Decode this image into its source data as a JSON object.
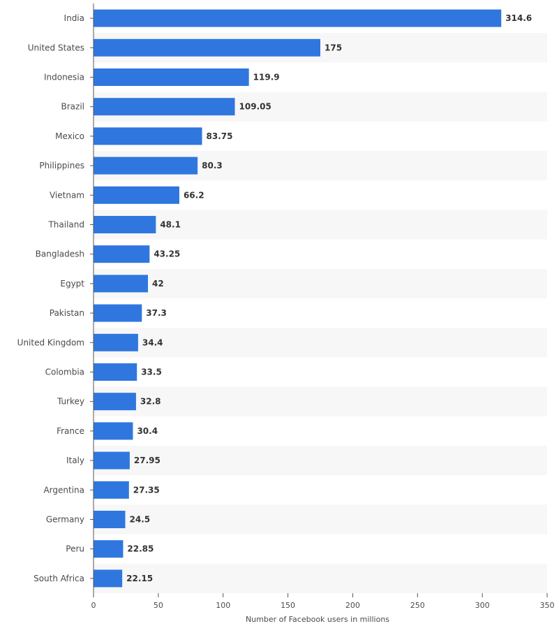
{
  "chart_data": {
    "type": "bar",
    "orientation": "horizontal",
    "categories": [
      "India",
      "United States",
      "Indonesia",
      "Brazil",
      "Mexico",
      "Philippines",
      "Vietnam",
      "Thailand",
      "Bangladesh",
      "Egypt",
      "Pakistan",
      "United Kingdom",
      "Colombia",
      "Turkey",
      "France",
      "Italy",
      "Argentina",
      "Germany",
      "Peru",
      "South Africa"
    ],
    "values": [
      314.6,
      175,
      119.9,
      109.05,
      83.75,
      80.3,
      66.2,
      48.1,
      43.25,
      42,
      37.3,
      34.4,
      33.5,
      32.8,
      30.4,
      27.95,
      27.35,
      24.5,
      22.85,
      22.15
    ],
    "value_labels": [
      "314.6",
      "175",
      "119.9",
      "109.05",
      "83.75",
      "80.3",
      "66.2",
      "48.1",
      "43.25",
      "42",
      "37.3",
      "34.4",
      "33.5",
      "32.8",
      "30.4",
      "27.95",
      "27.35",
      "24.5",
      "22.85",
      "22.15"
    ],
    "xlabel": "Number of Facebook users in millions",
    "ylabel": "",
    "xlim": [
      0,
      350
    ],
    "xticks": [
      0,
      50,
      100,
      150,
      200,
      250,
      300,
      350
    ],
    "grid": false,
    "legend": "none",
    "colors": {
      "bar": "#2f77de",
      "stripe": "#f7f7f7",
      "axis": "#555555",
      "label": "#4a4a4a",
      "value": "#333333"
    }
  }
}
